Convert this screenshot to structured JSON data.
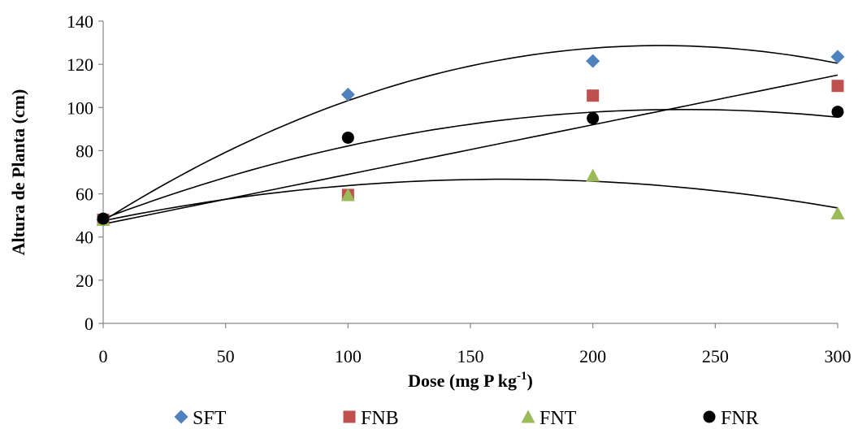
{
  "chart_data": {
    "type": "scatter",
    "title": "",
    "xlabel": "Dose (mg P kg",
    "xlabel_sup": "-1",
    "xlabel_end": ")",
    "ylabel": "Altura de Planta (cm)",
    "xlim": [
      0,
      300
    ],
    "ylim": [
      0,
      140
    ],
    "xticks": [
      0,
      50,
      100,
      150,
      200,
      250,
      300
    ],
    "yticks": [
      0,
      20,
      40,
      60,
      80,
      100,
      120,
      140
    ],
    "grid": false,
    "legend_position": "bottom",
    "x": [
      0,
      100,
      200,
      300
    ],
    "series": [
      {
        "name": "SFT",
        "marker": "diamond",
        "color": "#4f81bd",
        "values": [
          48,
          106,
          121.5,
          123.5
        ],
        "trend": {
          "kind": "quadratic",
          "coef": [
            47.5,
            0.7133,
            -0.001567
          ]
        }
      },
      {
        "name": "FNB",
        "marker": "square",
        "color": "#c0504d",
        "values": [
          48,
          59.5,
          105.5,
          110
        ],
        "trend": {
          "kind": "linear",
          "coef": [
            46,
            0.23
          ]
        }
      },
      {
        "name": "FNT",
        "marker": "triangle",
        "color": "#9bbb59",
        "values": [
          48,
          59.5,
          68.5,
          51
        ],
        "trend": {
          "kind": "quadratic",
          "coef": [
            47.5,
            0.235,
            -0.000717
          ]
        }
      },
      {
        "name": "FNR",
        "marker": "circle",
        "color": "#000000",
        "values": [
          48.5,
          86,
          95,
          98
        ],
        "trend": {
          "kind": "quadratic",
          "coef": [
            48.5,
            0.4267,
            -0.0009
          ]
        }
      }
    ]
  }
}
